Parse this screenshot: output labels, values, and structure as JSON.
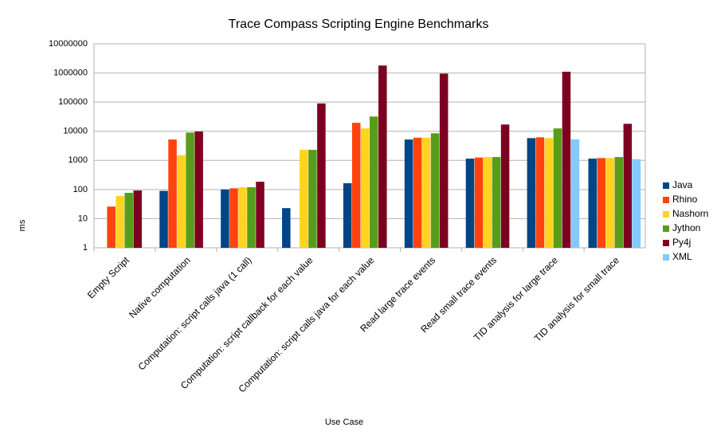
{
  "chart_data": {
    "type": "bar",
    "title": "Trace Compass Scripting Engine Benchmarks",
    "x_label": "Use Case",
    "y_label": "ms",
    "log_scale": true,
    "grid": true,
    "legend": "right",
    "categories": [
      "Empty Script",
      "Native computation",
      "Computation: script calls java (1 call)",
      "Computation: script callback for each value",
      "Computation: script calls java for each value",
      "Read large trace events",
      "Read small trace events",
      "TID analysis for large trace",
      "TID analysis for small trace"
    ],
    "series": [
      {
        "name": "Java",
        "color": "#004586",
        "values": [
          null,
          90,
          100,
          23,
          165,
          5200,
          1150,
          5800,
          1150
        ]
      },
      {
        "name": "Rhino",
        "color": "#ff420e",
        "values": [
          26,
          5200,
          110,
          null,
          19500,
          6000,
          1250,
          6200,
          1200
        ]
      },
      {
        "name": "Nashorn",
        "color": "#ffd320",
        "values": [
          60,
          1500,
          120,
          2300,
          12500,
          6000,
          1300,
          5800,
          1200
        ]
      },
      {
        "name": "Jython",
        "color": "#579d1c",
        "values": [
          77,
          9000,
          120,
          2300,
          32000,
          8500,
          1300,
          12500,
          1300
        ]
      },
      {
        "name": "Py4j",
        "color": "#7e0021",
        "values": [
          93,
          9800,
          185,
          90000,
          1800000,
          950000,
          17000,
          1100000,
          18000
        ]
      },
      {
        "name": "XML",
        "color": "#83caff",
        "values": [
          null,
          null,
          null,
          null,
          null,
          null,
          null,
          5300,
          1100
        ]
      }
    ],
    "ylim": [
      1,
      10000000
    ],
    "yticks": [
      1,
      10,
      100,
      1000,
      10000,
      100000,
      1000000,
      10000000
    ]
  }
}
